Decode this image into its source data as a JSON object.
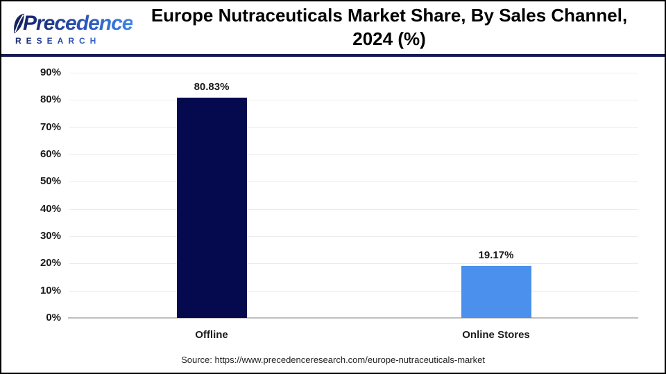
{
  "header": {
    "logo": {
      "name": "Precedence",
      "subtitle": "RESEARCH"
    },
    "title": "Europe  Nutraceuticals Market Share, By Sales Channel,\n2024 (%)"
  },
  "chart_data": {
    "type": "bar",
    "title": "Europe Nutraceuticals Market Share, By Sales Channel, 2024 (%)",
    "categories": [
      "Offline",
      "Online Stores"
    ],
    "values": [
      80.83,
      19.17
    ],
    "value_labels": [
      "80.83%",
      "19.17%"
    ],
    "bar_colors": [
      "#050a4e",
      "#4a90ec"
    ],
    "xlabel": "",
    "ylabel": "",
    "ylim": [
      0,
      90
    ],
    "yticks": [
      "90%",
      "80%",
      "70%",
      "60%",
      "50%",
      "40%",
      "30%",
      "20%",
      "10%",
      "0%"
    ],
    "ytick_values": [
      90,
      80,
      70,
      60,
      50,
      40,
      30,
      20,
      10,
      0
    ],
    "grid": true,
    "legend": false,
    "colors": {
      "grid": "#ececec",
      "axis": "#bfbfbf",
      "text": "#1a1a1a",
      "header_rule": "#151b54",
      "logo_navy": "#16246b",
      "logo_blue": "#3f86e8"
    }
  },
  "footer": {
    "source": "Source: https://www.precedenceresearch.com/europe-nutraceuticals-market"
  }
}
